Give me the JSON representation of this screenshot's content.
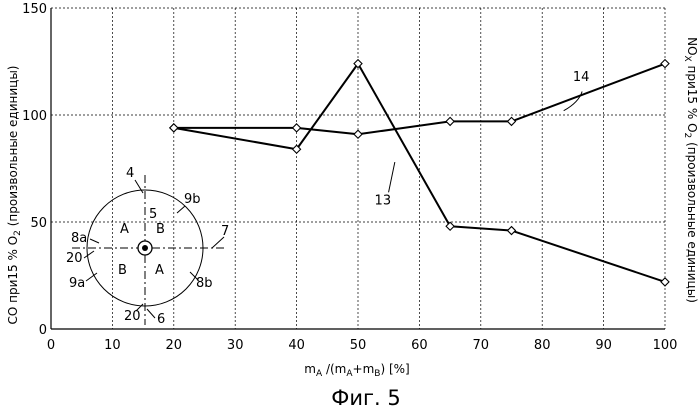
{
  "chart_data": {
    "type": "line",
    "x_ticks": [
      0,
      10,
      20,
      30,
      40,
      50,
      60,
      70,
      80,
      90,
      100
    ],
    "y_ticks": [
      0,
      50,
      100,
      150
    ],
    "xlim": [
      0,
      100
    ],
    "ylim": [
      0,
      150
    ],
    "grid": true,
    "xlabel_parts": [
      "m",
      "A",
      " /(m",
      "A",
      "+m",
      "B",
      ") [%]"
    ],
    "ylabel_left_parts": [
      "CO при15 % O",
      "2",
      " (произвольные единицы)"
    ],
    "ylabel_right_parts": [
      "NO",
      "X",
      " при15 % O",
      "2",
      " (произвольные единицы)"
    ],
    "series": [
      {
        "ref": "13",
        "x": [
          20,
          40,
          50,
          65,
          75,
          100
        ],
        "y": [
          94,
          84,
          124,
          48,
          46,
          22
        ]
      },
      {
        "ref": "14",
        "x": [
          20,
          40,
          50,
          65,
          75,
          100
        ],
        "y": [
          94,
          94,
          91,
          97,
          97,
          124
        ]
      }
    ]
  },
  "inset": {
    "labels": {
      "l4": "4",
      "l5": "5",
      "l6": "6",
      "l7": "7",
      "l8a": "8a",
      "l8b": "8b",
      "l9a": "9a",
      "l9b": "9b",
      "l20a": "20",
      "l20b": "20",
      "qA1": "A",
      "qB1": "B",
      "qB2": "B",
      "qA2": "A"
    }
  },
  "caption": "Фиг. 5"
}
